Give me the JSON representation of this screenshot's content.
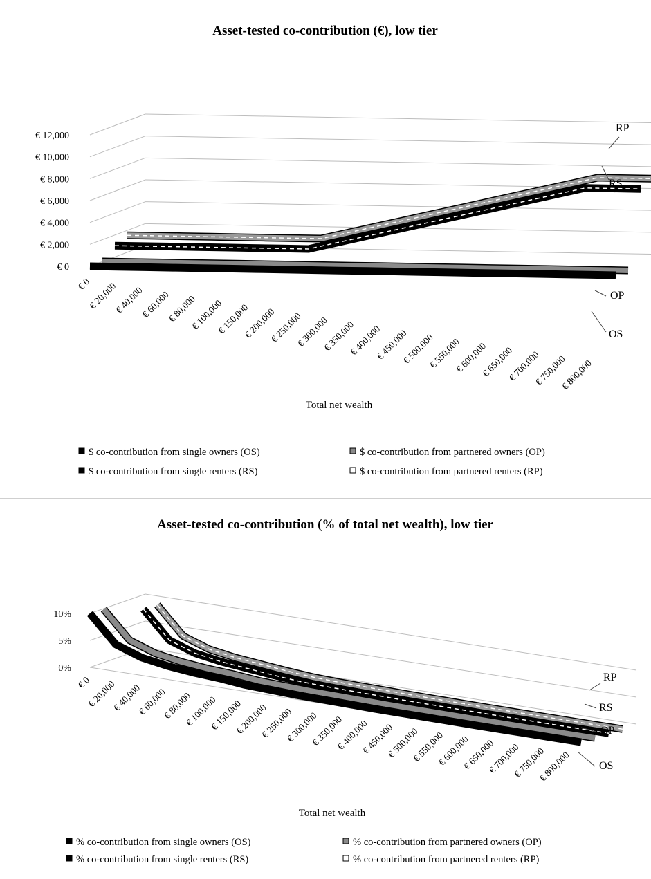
{
  "charts": [
    {
      "id": "top",
      "chart_data": {
        "type": "line",
        "title": "Asset-tested co-contribution (€), low tier",
        "xlabel": "Total net wealth",
        "ylabel": "",
        "categories": [
          "€ 0",
          "€ 20,000",
          "€ 40,000",
          "€ 60,000",
          "€ 80,000",
          "€ 100,000",
          "€ 150,000",
          "€ 200,000",
          "€ 250,000",
          "€ 300,000",
          "€ 350,000",
          "€ 400,000",
          "€ 450,000",
          "€ 500,000",
          "€ 550,000",
          "€ 600,000",
          "€ 650,000",
          "€ 700,000",
          "€ 750,000",
          "€ 800,000"
        ],
        "yticks": [
          "€ 0",
          "€ 2,000",
          "€ 4,000",
          "€ 6,000",
          "€ 8,000",
          "€ 10,000",
          "€ 12,000"
        ],
        "ylim": [
          0,
          12000
        ],
        "series": [
          {
            "name": "OS",
            "color": "#000000",
            "style": "solid",
            "values": [
              0,
              0,
              0,
              0,
              0,
              0,
              0,
              0,
              0,
              0,
              0,
              0,
              0,
              0,
              0,
              0,
              0,
              0,
              0,
              0
            ]
          },
          {
            "name": "OP",
            "color": "#8a8a8a",
            "style": "solid",
            "values": [
              0,
              0,
              0,
              0,
              0,
              0,
              0,
              0,
              0,
              0,
              0,
              0,
              0,
              0,
              0,
              0,
              0,
              0,
              0,
              0
            ]
          },
          {
            "name": "RS",
            "color": "#000000",
            "style": "dashed",
            "values": [
              1000,
              1000,
              1000,
              1000,
              1000,
              1000,
              1000,
              1000,
              1600,
              2200,
              2800,
              3400,
              4000,
              4600,
              5200,
              5800,
              6400,
              7000,
              7000,
              7000
            ]
          },
          {
            "name": "RP",
            "color": "#9a9a9a",
            "style": "dashed",
            "values": [
              1500,
              1500,
              1500,
              1500,
              1500,
              1500,
              1500,
              1500,
              2100,
              2700,
              3300,
              3900,
              4500,
              5100,
              5700,
              6300,
              6900,
              7500,
              7500,
              7500
            ]
          }
        ],
        "legend": [
          {
            "label": "$ co-contribution from single owners (OS)",
            "marker": "#000000"
          },
          {
            "label": "$ co-contribution from partnered owners (OP)",
            "marker": "#8a8a8a"
          },
          {
            "label": "$ co-contribution from single renters (RS)",
            "marker": "#000000"
          },
          {
            "label": "$ co-contribution from partnered renters (RP)",
            "marker": "#ffffff"
          }
        ],
        "legend_position": "bottom",
        "grid": true
      }
    },
    {
      "id": "bottom",
      "chart_data": {
        "type": "line",
        "title": "Asset-tested co-contribution (% of total net wealth), low tier",
        "xlabel": "Total net wealth",
        "ylabel": "",
        "categories": [
          "€ 0",
          "€ 20,000",
          "€ 40,000",
          "€ 60,000",
          "€ 80,000",
          "€ 100,000",
          "€ 150,000",
          "€ 200,000",
          "€ 250,000",
          "€ 300,000",
          "€ 350,000",
          "€ 400,000",
          "€ 450,000",
          "€ 500,000",
          "€ 550,000",
          "€ 600,000",
          "€ 650,000",
          "€ 700,000",
          "€ 750,000",
          "€ 800,000"
        ],
        "yticks": [
          "0%",
          "5%",
          "10%"
        ],
        "ylim": [
          0,
          10
        ],
        "series": [
          {
            "name": "OS",
            "color": "#000000",
            "style": "solid",
            "values": [
              10,
              5,
              3.3,
              2.5,
              2,
              1.7,
              1.2,
              1,
              0.8,
              0.7,
              0.6,
              0.5,
              0.45,
              0.4,
              0.36,
              0.33,
              0.3,
              0.28,
              0.26,
              0.25
            ]
          },
          {
            "name": "OP",
            "color": "#8a8a8a",
            "style": "solid",
            "values": [
              10,
              5,
              3.3,
              2.5,
              2,
              1.7,
              1.2,
              1,
              0.8,
              0.7,
              0.6,
              0.5,
              0.45,
              0.4,
              0.36,
              0.33,
              0.3,
              0.28,
              0.26,
              0.25
            ]
          },
          {
            "name": "RS",
            "color": "#000000",
            "style": "dashed",
            "values": [
              null,
              10,
              5,
              3.3,
              2.5,
              2,
              1.5,
              1.1,
              0.9,
              0.8,
              0.7,
              0.6,
              0.55,
              0.5,
              0.45,
              0.42,
              0.4,
              0.38,
              0.36,
              0.35
            ]
          },
          {
            "name": "RP",
            "color": "#9a9a9a",
            "style": "dashed",
            "values": [
              null,
              10,
              5,
              3.3,
              2.5,
              2,
              1.5,
              1.1,
              0.9,
              0.8,
              0.7,
              0.6,
              0.55,
              0.5,
              0.45,
              0.42,
              0.4,
              0.38,
              0.36,
              0.35
            ]
          }
        ],
        "legend": [
          {
            "label": "% co-contribution from single owners (OS)",
            "marker": "#000000"
          },
          {
            "label": "% co-contribution from partnered owners (OP)",
            "marker": "#8a8a8a"
          },
          {
            "label": "% co-contribution from single renters (RS)",
            "marker": "#000000"
          },
          {
            "label": "% co-contribution from partnered renters (RP)",
            "marker": "#ffffff"
          }
        ],
        "legend_position": "bottom",
        "grid": true
      }
    }
  ]
}
